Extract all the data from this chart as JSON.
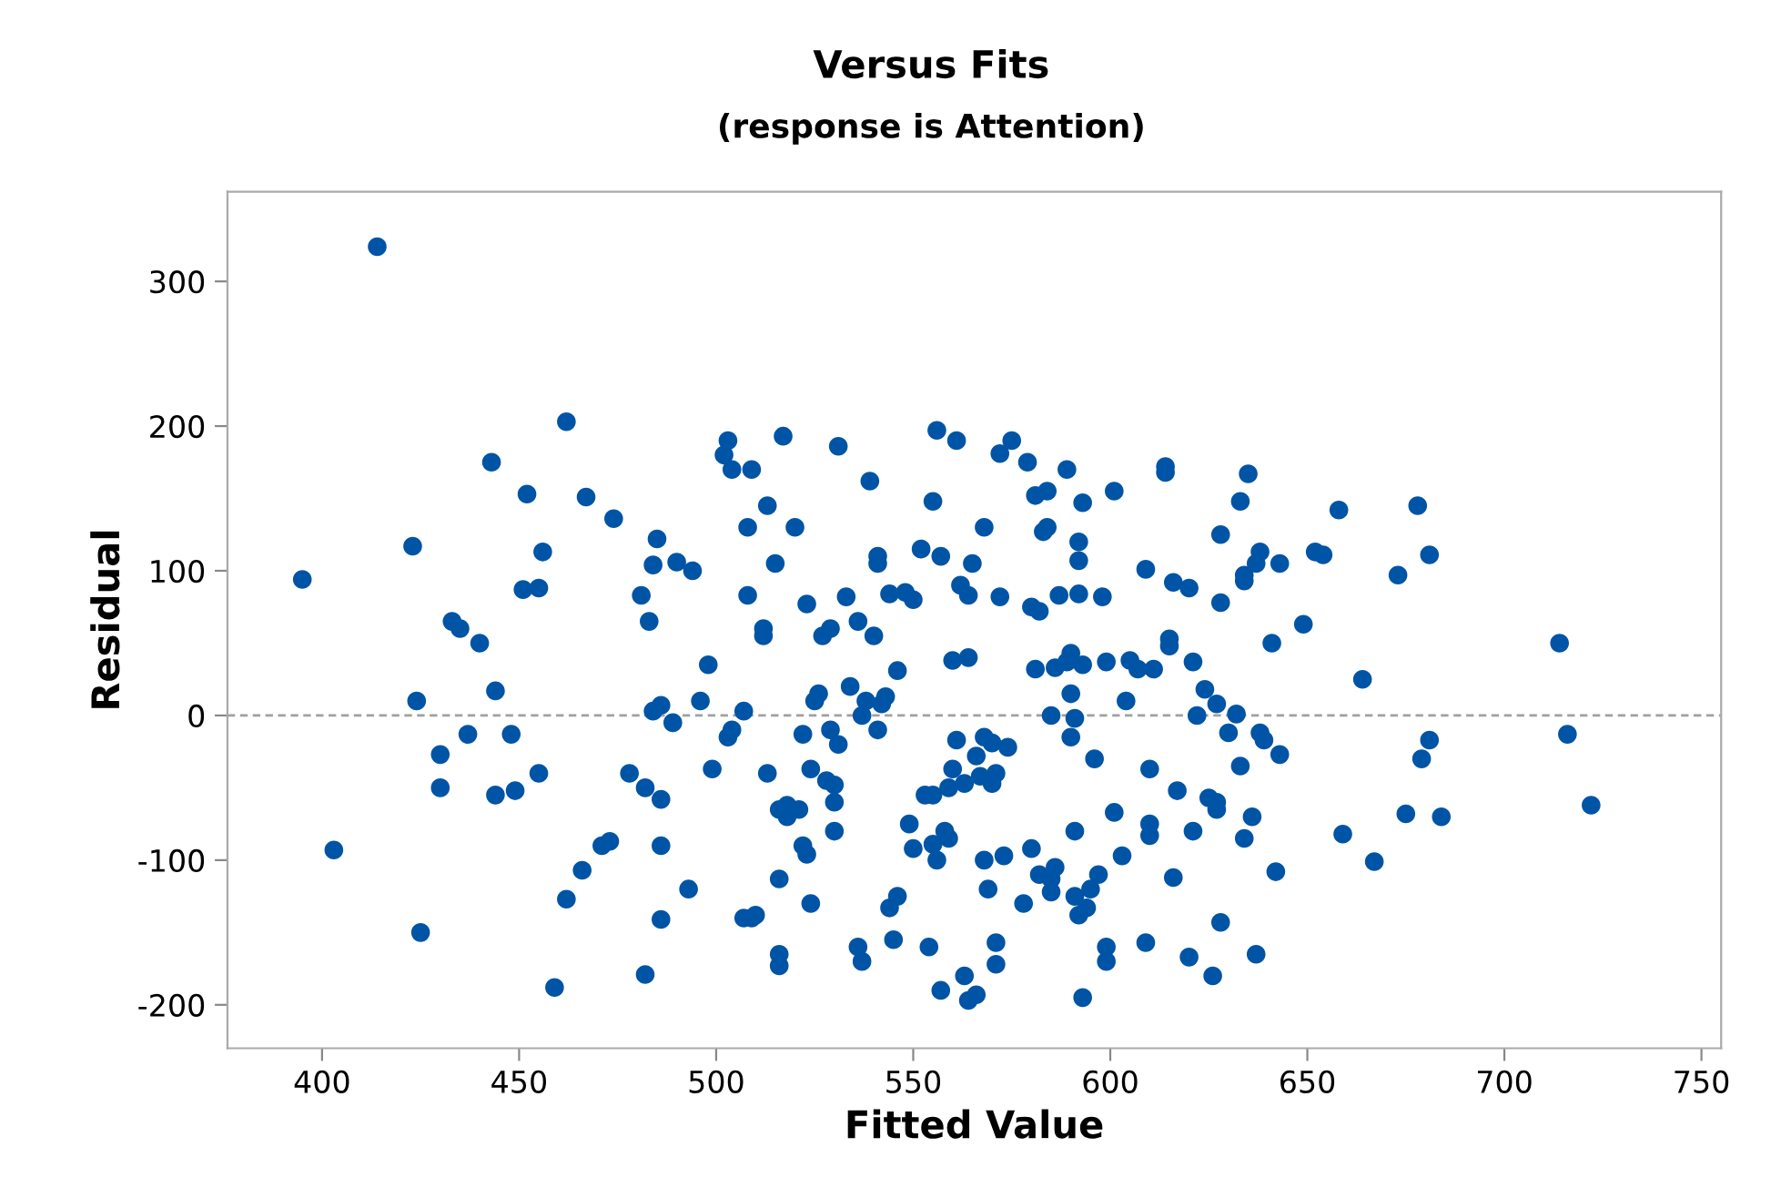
{
  "chart_data": {
    "type": "scatter",
    "title": "Versus Fits",
    "subtitle": "(response is Attention)",
    "xlabel": "Fitted Value",
    "ylabel": "Residual",
    "xlim": [
      376,
      755
    ],
    "ylim": [
      -230,
      362
    ],
    "xticks": [
      400,
      450,
      500,
      550,
      600,
      650,
      700,
      750
    ],
    "yticks": [
      -200,
      -100,
      0,
      100,
      200,
      300
    ],
    "grid": false,
    "marker": "circle",
    "ref_lines": [
      {
        "axis": "y",
        "value": 0,
        "color": "#a0a0a0",
        "line_style": "dashed"
      }
    ],
    "series": [
      {
        "color": "#0054a6",
        "x": [
          395,
          403,
          414,
          423,
          424,
          425,
          430,
          430,
          433,
          435,
          437,
          440,
          443,
          444,
          444,
          448,
          449,
          451,
          452,
          455,
          455,
          456,
          459,
          462,
          462,
          466,
          467,
          471,
          473,
          474,
          478,
          481,
          482,
          482,
          483,
          484,
          484,
          485,
          486,
          486,
          486,
          486,
          489,
          490,
          493,
          494,
          496,
          498,
          499,
          502,
          503,
          503,
          504,
          504,
          507,
          507,
          508,
          508,
          509,
          509,
          510,
          512,
          512,
          513,
          513,
          515,
          516,
          516,
          516,
          516,
          517,
          518,
          518,
          520,
          521,
          522,
          522,
          523,
          523,
          524,
          524,
          525,
          526,
          527,
          528,
          529,
          529,
          530,
          530,
          530,
          531,
          531,
          533,
          534,
          536,
          536,
          537,
          537,
          538,
          539,
          540,
          541,
          541,
          541,
          542,
          543,
          544,
          544,
          545,
          546,
          546,
          548,
          549,
          550,
          550,
          552,
          553,
          554,
          555,
          555,
          555,
          556,
          556,
          557,
          557,
          558,
          559,
          559,
          560,
          560,
          561,
          561,
          562,
          563,
          563,
          564,
          564,
          564,
          565,
          566,
          566,
          567,
          568,
          568,
          568,
          569,
          570,
          570,
          571,
          571,
          571,
          572,
          572,
          573,
          574,
          575,
          578,
          579,
          580,
          580,
          581,
          581,
          582,
          582,
          583,
          584,
          584,
          585,
          585,
          585,
          586,
          586,
          587,
          589,
          589,
          590,
          590,
          590,
          591,
          591,
          591,
          592,
          592,
          592,
          592,
          593,
          593,
          593,
          594,
          595,
          596,
          597,
          598,
          599,
          599,
          599,
          601,
          601,
          603,
          604,
          605,
          607,
          609,
          609,
          610,
          610,
          610,
          611,
          614,
          614,
          615,
          615,
          616,
          616,
          617,
          620,
          620,
          621,
          621,
          622,
          624,
          625,
          626,
          627,
          627,
          627,
          628,
          628,
          628,
          630,
          632,
          633,
          633,
          634,
          634,
          634,
          635,
          636,
          637,
          637,
          638,
          638,
          639,
          641,
          642,
          643,
          643,
          649,
          652,
          654,
          658,
          659,
          664,
          667,
          673,
          675,
          678,
          679,
          681,
          681,
          684,
          714,
          716,
          722
        ],
        "values": [
          94,
          -93,
          324,
          117,
          10,
          -150,
          -27,
          -50,
          65,
          60,
          -13,
          50,
          175,
          17,
          -55,
          -13,
          -52,
          87,
          153,
          88,
          -40,
          113,
          -188,
          203,
          -127,
          -107,
          151,
          -90,
          -87,
          136,
          -40,
          83,
          -50,
          -179,
          65,
          104,
          3,
          122,
          7,
          -58,
          -90,
          -141,
          -5,
          106,
          -120,
          100,
          10,
          35,
          -37,
          180,
          190,
          -15,
          -10,
          170,
          3,
          -140,
          130,
          83,
          170,
          -140,
          -138,
          60,
          55,
          145,
          -40,
          105,
          -165,
          -173,
          -113,
          -65,
          193,
          -62,
          -70,
          130,
          -65,
          -90,
          -13,
          77,
          -96,
          -130,
          -37,
          10,
          15,
          55,
          -45,
          -10,
          60,
          -48,
          -60,
          -80,
          186,
          -20,
          82,
          20,
          -160,
          65,
          -170,
          0,
          10,
          162,
          55,
          -10,
          105,
          110,
          8,
          13,
          -133,
          84,
          -155,
          -125,
          31,
          85,
          -75,
          80,
          -92,
          115,
          -55,
          -160,
          -89,
          -55,
          148,
          197,
          -100,
          -190,
          110,
          -80,
          -85,
          -50,
          -37,
          38,
          190,
          -17,
          90,
          -47,
          -180,
          -197,
          40,
          83,
          105,
          -193,
          -28,
          -42,
          -15,
          -100,
          130,
          -120,
          -19,
          -47,
          -157,
          -172,
          -40,
          82,
          181,
          -97,
          -22,
          190,
          -130,
          175,
          -92,
          75,
          32,
          152,
          72,
          -110,
          127,
          155,
          130,
          0,
          -113,
          -122,
          33,
          -105,
          83,
          37,
          170,
          -15,
          15,
          43,
          -2,
          -125,
          -80,
          -138,
          84,
          107,
          120,
          147,
          35,
          -195,
          -133,
          -120,
          -30,
          -110,
          82,
          -160,
          -170,
          37,
          -67,
          155,
          -97,
          10,
          38,
          32,
          101,
          -157,
          -75,
          -37,
          -83,
          32,
          172,
          168,
          53,
          48,
          -112,
          92,
          -52,
          -167,
          88,
          37,
          -80,
          0,
          18,
          -57,
          -180,
          8,
          -60,
          -65,
          -143,
          125,
          78,
          -12,
          1,
          -35,
          148,
          -85,
          97,
          93,
          167,
          -70,
          105,
          -165,
          113,
          -12,
          -17,
          50,
          -108,
          -27,
          105,
          63,
          113,
          111,
          142,
          -82,
          25,
          -101,
          97,
          -68,
          145,
          -30,
          -17,
          111,
          -70,
          50,
          -13,
          -62
        ]
      }
    ]
  }
}
